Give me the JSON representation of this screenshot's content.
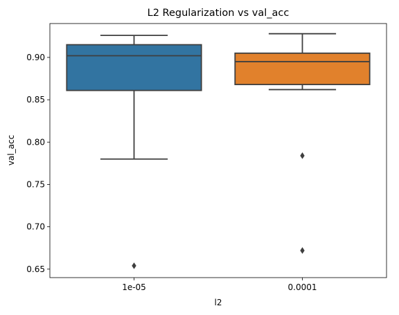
{
  "chart_data": {
    "type": "box",
    "title": "L2 Regularization vs val_acc",
    "xlabel": "l2",
    "ylabel": "val_acc",
    "ylim": [
      0.64,
      0.94
    ],
    "yticks": [
      0.65,
      0.7,
      0.75,
      0.8,
      0.85,
      0.9
    ],
    "ytick_labels": [
      "0.65",
      "0.70",
      "0.75",
      "0.80",
      "0.85",
      "0.90"
    ],
    "grid": false,
    "categories": [
      "1e-05",
      "0.0001"
    ],
    "boxes": [
      {
        "category": "1e-05",
        "color": "#3274a1",
        "whisker_low": 0.78,
        "q1": 0.861,
        "median": 0.902,
        "q3": 0.915,
        "whisker_high": 0.926,
        "outliers": [
          0.654
        ]
      },
      {
        "category": "0.0001",
        "color": "#e1812c",
        "whisker_low": 0.862,
        "q1": 0.868,
        "median": 0.895,
        "q3": 0.905,
        "whisker_high": 0.928,
        "outliers": [
          0.784,
          0.672
        ]
      }
    ]
  }
}
